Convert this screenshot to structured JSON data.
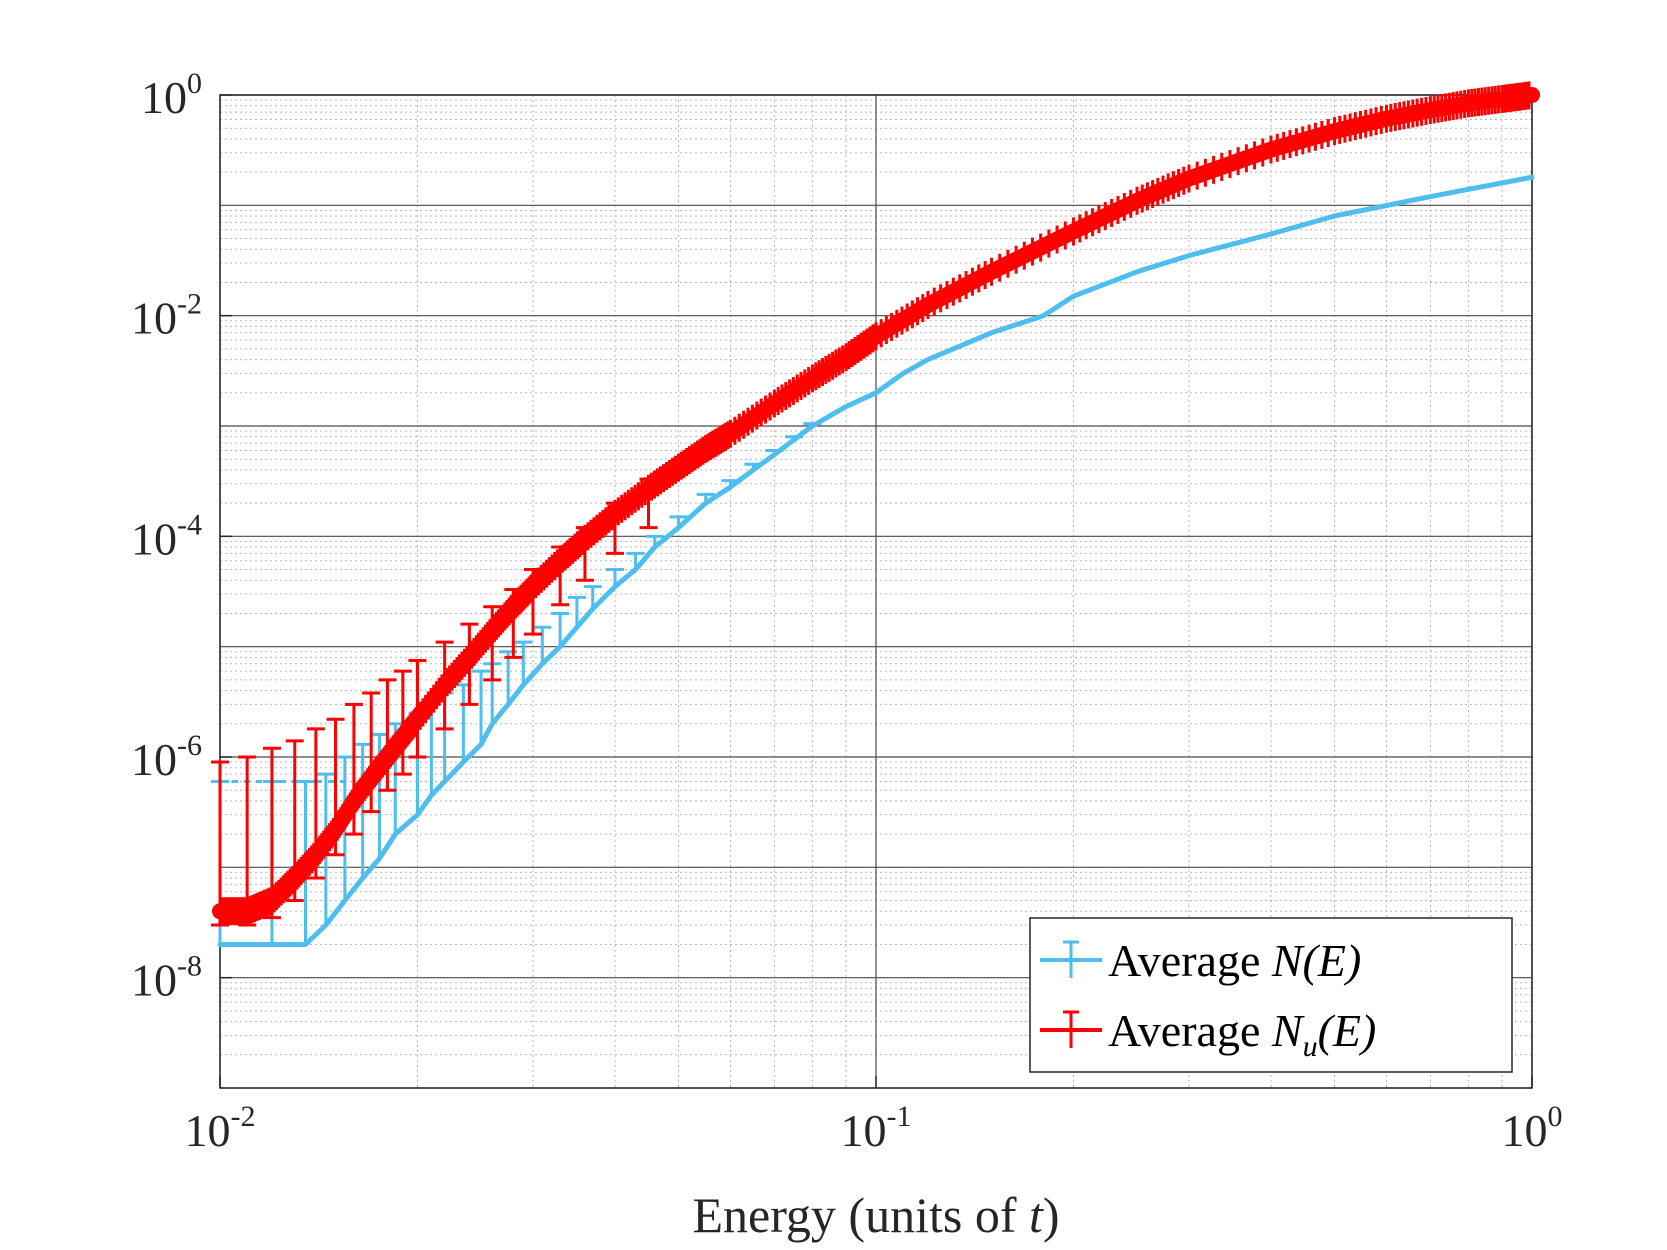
{
  "chart_data": {
    "type": "line",
    "title": "",
    "xlabel": "Energy (units of ",
    "xlabel_var": "t",
    "xlabel_close": ")",
    "ylabel": "",
    "xscale": "log",
    "yscale": "log",
    "xlim": [
      0.01,
      1
    ],
    "ylim": [
      1e-09,
      1
    ],
    "grid": "major and minor",
    "legend_position": "bottom-right",
    "x_ticks": [
      {
        "base": "10",
        "exp": "-2"
      },
      {
        "base": "10",
        "exp": "-1"
      },
      {
        "base": "10",
        "exp": "0"
      }
    ],
    "y_ticks": [
      {
        "base": "10",
        "exp": "0"
      },
      {
        "base": "10",
        "exp": "-2"
      },
      {
        "base": "10",
        "exp": "-4"
      },
      {
        "base": "10",
        "exp": "-6"
      },
      {
        "base": "10",
        "exp": "-8"
      }
    ],
    "series": [
      {
        "name": "Average ",
        "math": "N(E)",
        "math_sub": "",
        "color": "#4DBEEE",
        "x": [
          0.01,
          0.012,
          0.0135,
          0.0145,
          0.0155,
          0.0165,
          0.0175,
          0.0185,
          0.02,
          0.021,
          0.022,
          0.0235,
          0.025,
          0.026,
          0.0275,
          0.029,
          0.031,
          0.033,
          0.035,
          0.037,
          0.04,
          0.043,
          0.046,
          0.05,
          0.055,
          0.06,
          0.065,
          0.07,
          0.075,
          0.08,
          0.09,
          0.1,
          0.11,
          0.12,
          0.15,
          0.18,
          0.2,
          0.25,
          0.3,
          0.4,
          0.5,
          0.7,
          1.0
        ],
        "values": [
          2e-08,
          2e-08,
          2e-08,
          3e-08,
          5e-08,
          8e-08,
          1.2e-07,
          2e-07,
          3e-07,
          4.5e-07,
          6e-07,
          9e-07,
          1.3e-06,
          2e-06,
          3e-06,
          4.5e-06,
          7e-06,
          1e-05,
          1.5e-05,
          2.2e-05,
          3.5e-05,
          5e-05,
          8e-05,
          0.00012,
          0.0002,
          0.00028,
          0.0004,
          0.00055,
          0.00075,
          0.001,
          0.0015,
          0.002,
          0.003,
          0.004,
          0.007,
          0.01,
          0.015,
          0.025,
          0.035,
          0.055,
          0.08,
          0.12,
          0.18
        ],
        "err_top": [
          6e-07,
          6e-07,
          6e-07,
          7e-07,
          1e-06,
          1.3e-06,
          1.6e-06,
          2e-06,
          2.5e-06,
          3e-06,
          3.8e-06,
          4.5e-06,
          6e-06,
          7e-06,
          9e-06,
          1.1e-05,
          1.5e-05,
          2e-05,
          2.8e-05,
          3.5e-05,
          5e-05,
          7e-05,
          0.0001,
          0.00015,
          0.00024,
          0.00032,
          0.00045,
          0.0006,
          0.0008,
          0.00105
        ]
      },
      {
        "name": "Average ",
        "math": "N",
        "math_sub": "u",
        "math_tail": "(E)",
        "color": "#FF0000",
        "x": [
          0.01,
          0.011,
          0.012,
          0.013,
          0.014,
          0.015,
          0.016,
          0.017,
          0.018,
          0.019,
          0.02,
          0.022,
          0.024,
          0.026,
          0.028,
          0.03,
          0.033,
          0.036,
          0.04,
          0.045,
          0.05,
          0.055,
          0.06,
          0.07,
          0.08,
          0.09,
          0.1,
          0.12,
          0.15,
          0.2,
          0.25,
          0.3,
          0.4,
          0.5,
          0.6,
          0.7,
          0.8,
          0.9,
          1.0
        ],
        "values": [
          4e-08,
          4e-08,
          5e-08,
          8e-08,
          1.3e-07,
          2.2e-07,
          4e-07,
          6.5e-07,
          1e-06,
          1.5e-06,
          2.2e-06,
          4.5e-06,
          8e-06,
          1.4e-05,
          2.3e-05,
          3.5e-05,
          6e-05,
          9.5e-05,
          0.00016,
          0.00027,
          0.00042,
          0.00062,
          0.00085,
          0.0016,
          0.0027,
          0.0042,
          0.0065,
          0.0125,
          0.025,
          0.058,
          0.11,
          0.175,
          0.32,
          0.47,
          0.61,
          0.73,
          0.84,
          0.92,
          1.0
        ],
        "err_top": [
          9e-07,
          1e-06,
          1.2e-06,
          1.4e-06,
          1.8e-06,
          2.2e-06,
          3e-06,
          3.8e-06,
          5e-06,
          6e-06,
          7.5e-06,
          1.1e-05,
          1.6e-05,
          2.3e-05,
          3.3e-05,
          5e-05,
          8e-05,
          0.00012,
          0.0002,
          0.00033
        ],
        "err_bottom": [
          3e-08,
          3e-08,
          3.5e-08,
          5e-08,
          8e-08,
          1.3e-07,
          2e-07,
          3.2e-07,
          5e-07,
          7e-07,
          1e-06,
          1.8e-06,
          3e-06,
          5e-06,
          8e-06,
          1.3e-05,
          2.4e-05,
          4e-05,
          7e-05,
          0.00012
        ]
      }
    ]
  }
}
